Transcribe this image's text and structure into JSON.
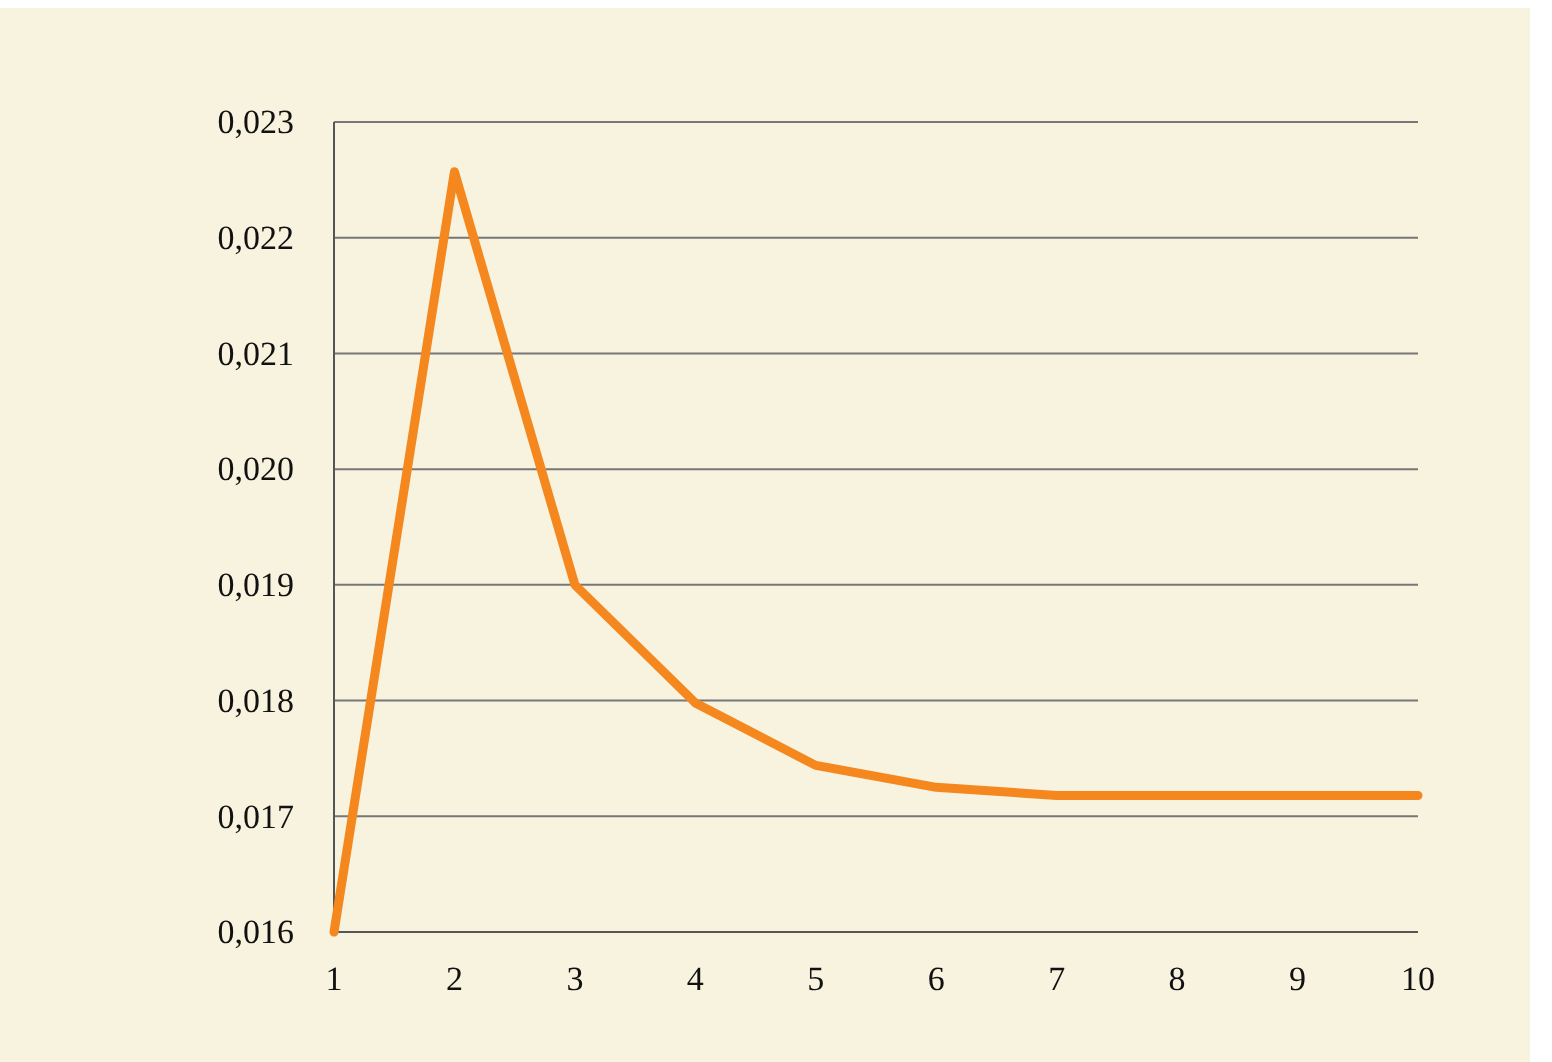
{
  "chart_data": {
    "type": "line",
    "x": [
      1,
      2,
      3,
      4,
      5,
      6,
      7,
      8,
      9,
      10
    ],
    "series": [
      {
        "color": "#f5871f",
        "values": [
          0.016,
          0.02257,
          0.019,
          0.01798,
          0.01744,
          0.01725,
          0.01718,
          0.01718,
          0.01718,
          0.01718
        ]
      }
    ],
    "xlim": [
      1,
      10
    ],
    "xticks": [
      1,
      2,
      3,
      4,
      5,
      6,
      7,
      8,
      9,
      10
    ],
    "ylim": [
      0.016,
      0.023
    ],
    "yticks": [
      {
        "value": 0.016,
        "label": "0,016"
      },
      {
        "value": 0.017,
        "label": "0,017"
      },
      {
        "value": 0.018,
        "label": "0,018"
      },
      {
        "value": 0.019,
        "label": "0,019"
      },
      {
        "value": 0.02,
        "label": "0,020"
      },
      {
        "value": 0.021,
        "label": "0,021"
      },
      {
        "value": 0.022,
        "label": "0,022"
      },
      {
        "value": 0.023,
        "label": "0,023"
      }
    ],
    "grid": "y",
    "marker": "none",
    "line_style": "solid"
  }
}
